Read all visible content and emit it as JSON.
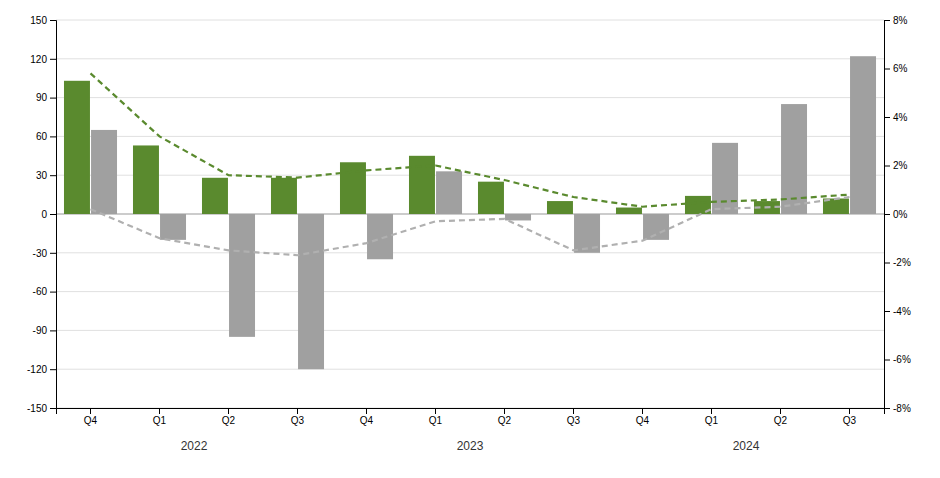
{
  "chart_data": {
    "type": "bar",
    "categories": [
      "Q4",
      "Q1",
      "Q2",
      "Q3",
      "Q4",
      "Q1",
      "Q2",
      "Q3",
      "Q4",
      "Q1",
      "Q2",
      "Q3"
    ],
    "series": [
      {
        "type": "bar",
        "color": "#5a8a2e",
        "values": [
          103,
          53,
          28,
          28,
          40,
          45,
          25,
          10,
          5,
          14,
          10,
          12
        ]
      },
      {
        "type": "bar",
        "color": "#a0a0a0",
        "values": [
          65,
          -20,
          -95,
          -120,
          -35,
          33,
          -5,
          -30,
          -20,
          55,
          85,
          122
        ]
      },
      {
        "type": "line",
        "color": "#5a8a2e",
        "line_style": "dashed",
        "axis": "y2",
        "values": [
          5.8,
          3.2,
          1.6,
          1.5,
          1.8,
          2.0,
          1.4,
          0.7,
          0.3,
          0.5,
          0.6,
          0.8
        ]
      },
      {
        "type": "line",
        "color": "#b0b0b0",
        "line_style": "dashed",
        "axis": "y2",
        "values": [
          0.2,
          -1.0,
          -1.5,
          -1.7,
          -1.2,
          -0.3,
          -0.2,
          -1.5,
          -1.1,
          0.2,
          0.3,
          0.7
        ]
      }
    ],
    "ylim": [
      -150,
      150
    ],
    "yticks": [
      -150,
      -120,
      -90,
      -60,
      -30,
      0,
      30,
      60,
      90,
      120,
      150
    ],
    "y2lim": [
      -8,
      8
    ],
    "y2ticks": [
      {
        "value": -8,
        "label": "-8%"
      },
      {
        "value": -6,
        "label": "-6%"
      },
      {
        "value": -4,
        "label": "-4%"
      },
      {
        "value": -2,
        "label": "-2%"
      },
      {
        "value": 0,
        "label": "0%"
      },
      {
        "value": 2,
        "label": "2%"
      },
      {
        "value": 4,
        "label": "4%"
      },
      {
        "value": 6,
        "label": "6%"
      },
      {
        "value": 8,
        "label": "8%"
      }
    ],
    "grid": true,
    "annotations": [
      {
        "text": "2022",
        "x": 1.5
      },
      {
        "text": "2023",
        "x": 5.5
      },
      {
        "text": "2024",
        "x": 9.5
      }
    ]
  }
}
